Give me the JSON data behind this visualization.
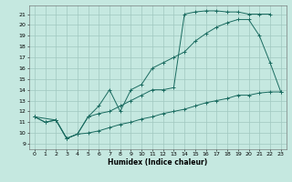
{
  "xlabel": "Humidex (Indice chaleur)",
  "bg_color": "#c5e8e0",
  "grid_color": "#a0c8c0",
  "line_color": "#1a6b60",
  "xlim": [
    -0.5,
    23.5
  ],
  "ylim": [
    8.5,
    21.8
  ],
  "yticks": [
    9,
    10,
    11,
    12,
    13,
    14,
    15,
    16,
    17,
    18,
    19,
    20,
    21
  ],
  "xticks": [
    0,
    1,
    2,
    3,
    4,
    5,
    6,
    7,
    8,
    9,
    10,
    11,
    12,
    13,
    14,
    15,
    16,
    17,
    18,
    19,
    20,
    21,
    22,
    23
  ],
  "line1_x": [
    0,
    1,
    2,
    3,
    4,
    5,
    6,
    7,
    8,
    9,
    10,
    11,
    12,
    13,
    14,
    15,
    16,
    17,
    18,
    19,
    20,
    21,
    22
  ],
  "line1_y": [
    11.5,
    11.0,
    11.2,
    9.5,
    9.9,
    11.5,
    11.8,
    12.0,
    12.5,
    13.0,
    13.5,
    14.0,
    14.0,
    14.2,
    21.0,
    21.2,
    21.3,
    21.3,
    21.2,
    21.2,
    21.0,
    21.0,
    21.0
  ],
  "line2_x": [
    0,
    2,
    3,
    4,
    5,
    6,
    7,
    8,
    9,
    10,
    11,
    12,
    13,
    14,
    15,
    16,
    17,
    18,
    19,
    20,
    21,
    22,
    23
  ],
  "line2_y": [
    11.5,
    11.2,
    9.5,
    9.9,
    11.5,
    12.5,
    14.0,
    12.0,
    14.0,
    14.5,
    16.0,
    16.5,
    17.0,
    17.5,
    18.5,
    19.2,
    19.8,
    20.2,
    20.5,
    20.5,
    19.0,
    16.5,
    13.8
  ],
  "line3_x": [
    0,
    1,
    2,
    3,
    4,
    5,
    6,
    7,
    8,
    9,
    10,
    11,
    12,
    13,
    14,
    15,
    16,
    17,
    18,
    19,
    20,
    21,
    22,
    23
  ],
  "line3_y": [
    11.5,
    11.0,
    11.2,
    9.5,
    9.9,
    10.0,
    10.2,
    10.5,
    10.8,
    11.0,
    11.3,
    11.5,
    11.8,
    12.0,
    12.2,
    12.5,
    12.8,
    13.0,
    13.2,
    13.5,
    13.5,
    13.7,
    13.8,
    13.8
  ]
}
